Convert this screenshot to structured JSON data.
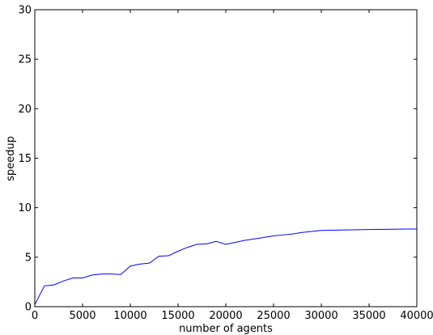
{
  "chart_data": {
    "type": "line",
    "title": "",
    "xlabel": "number of agents",
    "ylabel": "speedup",
    "xlim": [
      0,
      40000
    ],
    "ylim": [
      0,
      30
    ],
    "xticks": [
      0,
      5000,
      10000,
      15000,
      20000,
      25000,
      30000,
      35000,
      40000
    ],
    "yticks": [
      0,
      5,
      10,
      15,
      20,
      25,
      30
    ],
    "xtick_labels": [
      "0",
      "5000",
      "10000",
      "15000",
      "20000",
      "25000",
      "30000",
      "35000",
      "40000"
    ],
    "ytick_labels": [
      "0",
      "5",
      "10",
      "15",
      "20",
      "25",
      "30"
    ],
    "grid": false,
    "legend": "none",
    "series": [
      {
        "color": "#0000ff",
        "x": [
          0,
          1000,
          2000,
          3000,
          4000,
          5000,
          6000,
          7000,
          8000,
          9000,
          10000,
          11000,
          12000,
          13000,
          14000,
          15000,
          16000,
          17000,
          18000,
          19000,
          20000,
          21000,
          22000,
          23000,
          24000,
          25000,
          26000,
          27000,
          28000,
          29000,
          30000,
          35000,
          40000
        ],
        "y": [
          0.2,
          2.1,
          2.2,
          2.6,
          2.9,
          2.9,
          3.2,
          3.3,
          3.3,
          3.25,
          4.1,
          4.3,
          4.4,
          5.1,
          5.15,
          5.6,
          6.0,
          6.3,
          6.35,
          6.6,
          6.3,
          6.5,
          6.7,
          6.85,
          7.0,
          7.15,
          7.25,
          7.35,
          7.5,
          7.6,
          7.7,
          7.8,
          7.85
        ]
      }
    ]
  }
}
